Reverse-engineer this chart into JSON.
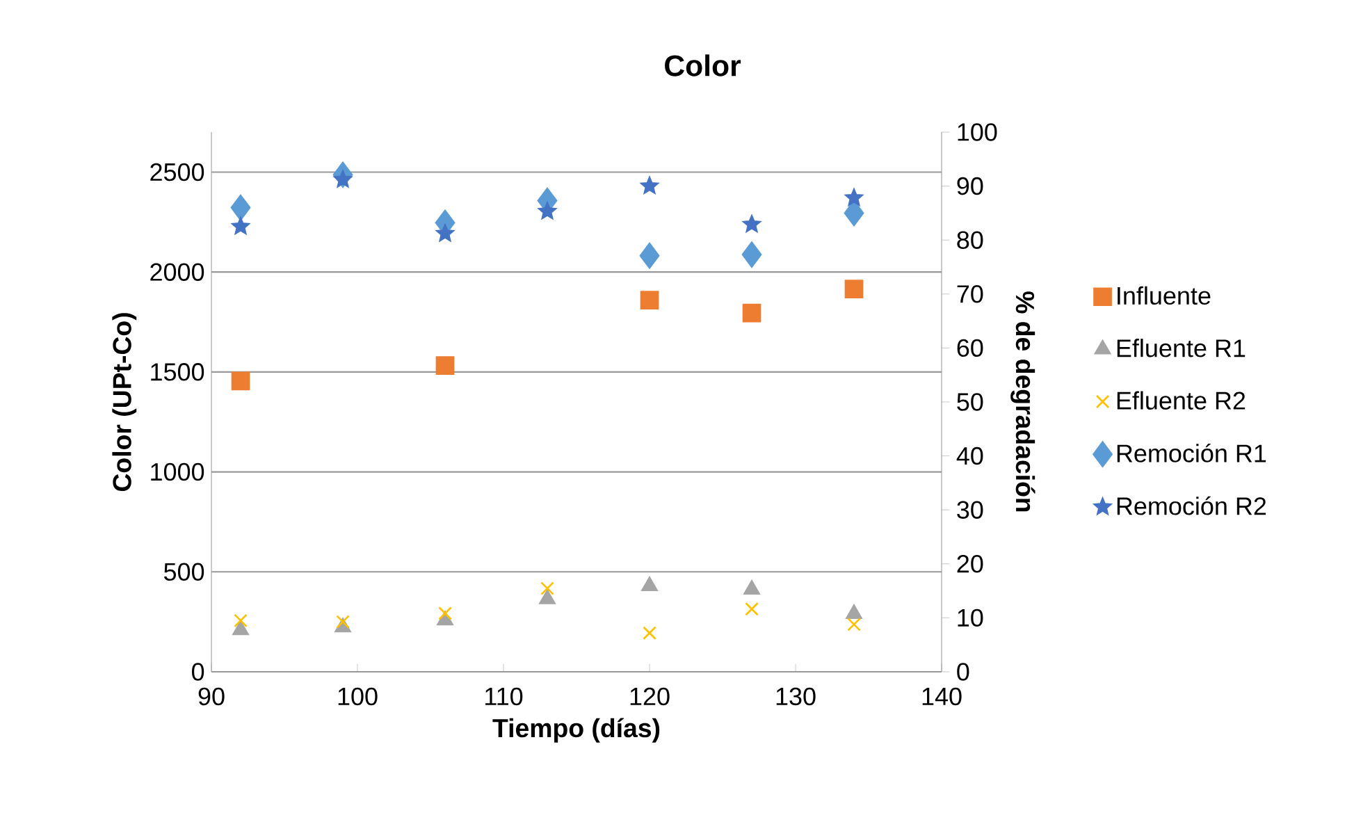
{
  "chart_data": {
    "type": "scatter",
    "title": "Color",
    "xlabel": "Tiempo (días)",
    "ylabel": "Color  (UPt-Co)",
    "y2label": "% de degradación",
    "x": [
      92,
      99,
      106,
      113,
      120,
      127,
      134
    ],
    "xlim": [
      90,
      140
    ],
    "xticks": [
      90,
      100,
      110,
      120,
      130,
      140
    ],
    "ylim": [
      0,
      2700
    ],
    "yticks": [
      0,
      500,
      1000,
      1500,
      2000,
      2500
    ],
    "y2lim": [
      0,
      100
    ],
    "y2ticks": [
      0,
      10,
      20,
      30,
      40,
      50,
      60,
      70,
      80,
      90,
      100
    ],
    "grid": "y",
    "legend": "right",
    "series": [
      {
        "name": "Influente",
        "color": "#ed7d31",
        "marker": "square",
        "values": [
          1455,
          null,
          1532,
          null,
          1859,
          1795,
          1915
        ]
      },
      {
        "name": "Efluente  R1",
        "color": "#a5a5a5",
        "marker": "triangle",
        "values": [
          209,
          223,
          258,
          364,
          429,
          412,
          290
        ]
      },
      {
        "name": "Efluente  R2",
        "color": "#ffc000",
        "marker": "cross",
        "values": [
          256,
          250,
          292,
          417,
          194,
          314,
          237
        ]
      },
      {
        "name": "Remoción  R1",
        "color": "#5b9bd5",
        "marker": "diamond",
        "axis": "y2",
        "values": [
          86.0,
          92.1,
          83.2,
          87.3,
          77.1,
          77.3,
          85.0
        ]
      },
      {
        "name": "Remoción  R2",
        "color": "#4472c4",
        "marker": "star",
        "axis": "y2",
        "values": [
          82.5,
          91.2,
          81.2,
          85.3,
          90.0,
          82.9,
          87.8
        ]
      }
    ]
  }
}
